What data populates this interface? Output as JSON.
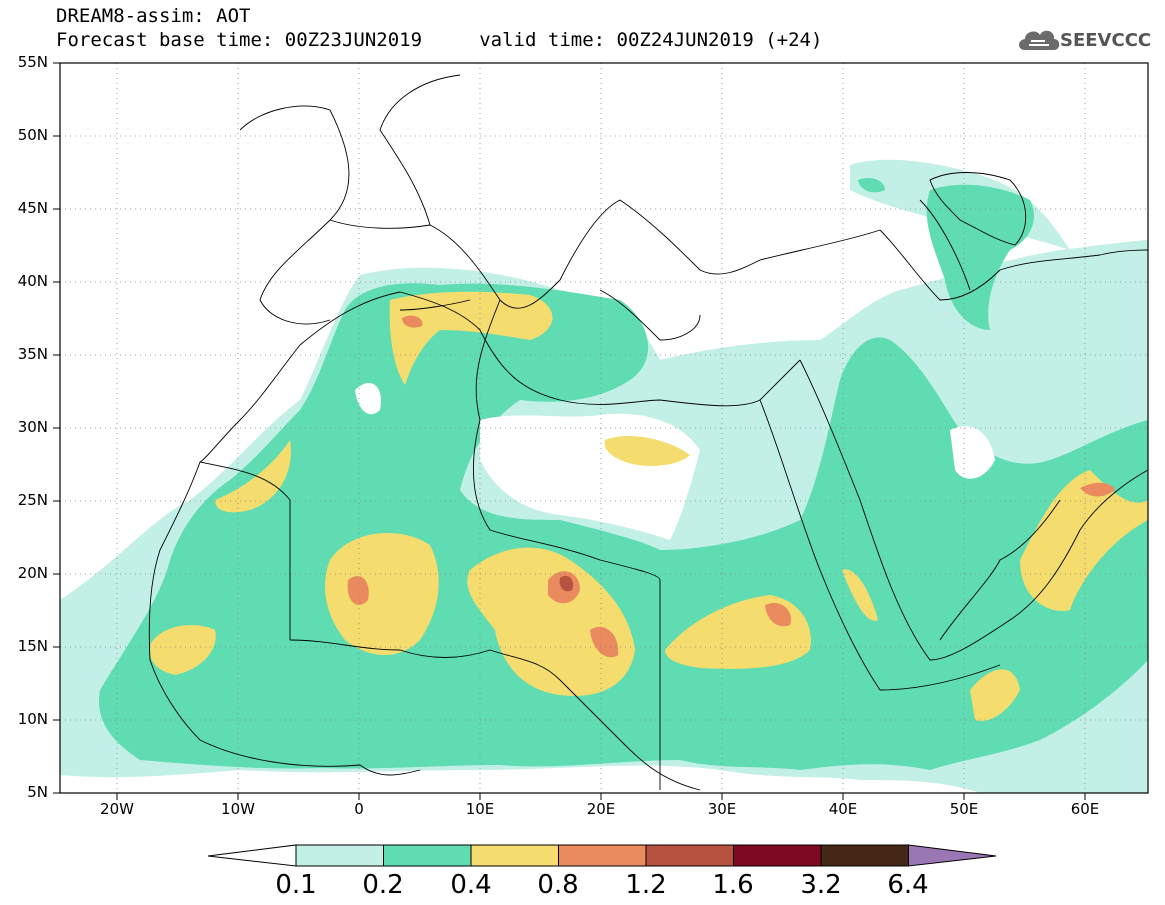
{
  "title": {
    "line1": "DREAM8-assim: AOT",
    "line2": "Forecast base time: 00Z23JUN2019     valid time: 00Z24JUN2019 (+24)"
  },
  "logo": {
    "text": "SEEVCCC",
    "icon": "cloud-icon"
  },
  "map": {
    "lat_labels": [
      "55N",
      "50N",
      "45N",
      "40N",
      "35N",
      "30N",
      "25N",
      "20N",
      "15N",
      "10N",
      "5N"
    ],
    "lon_labels": [
      "20W",
      "10W",
      "0",
      "10E",
      "20E",
      "30E",
      "40E",
      "50E",
      "60E"
    ],
    "lon_range": [
      -25,
      65
    ],
    "lat_range": [
      5,
      55
    ],
    "grid": "dotted"
  },
  "colorbar": {
    "levels": [
      "0.1",
      "0.2",
      "0.4",
      "0.8",
      "1.2",
      "1.6",
      "3.2",
      "6.4"
    ],
    "colors": [
      "#ffffff",
      "#c2f0e6",
      "#5fdcb2",
      "#f5dc6e",
      "#e98b5f",
      "#b85240",
      "#7d0a22",
      "#442714",
      "#9a76b5"
    ]
  }
}
